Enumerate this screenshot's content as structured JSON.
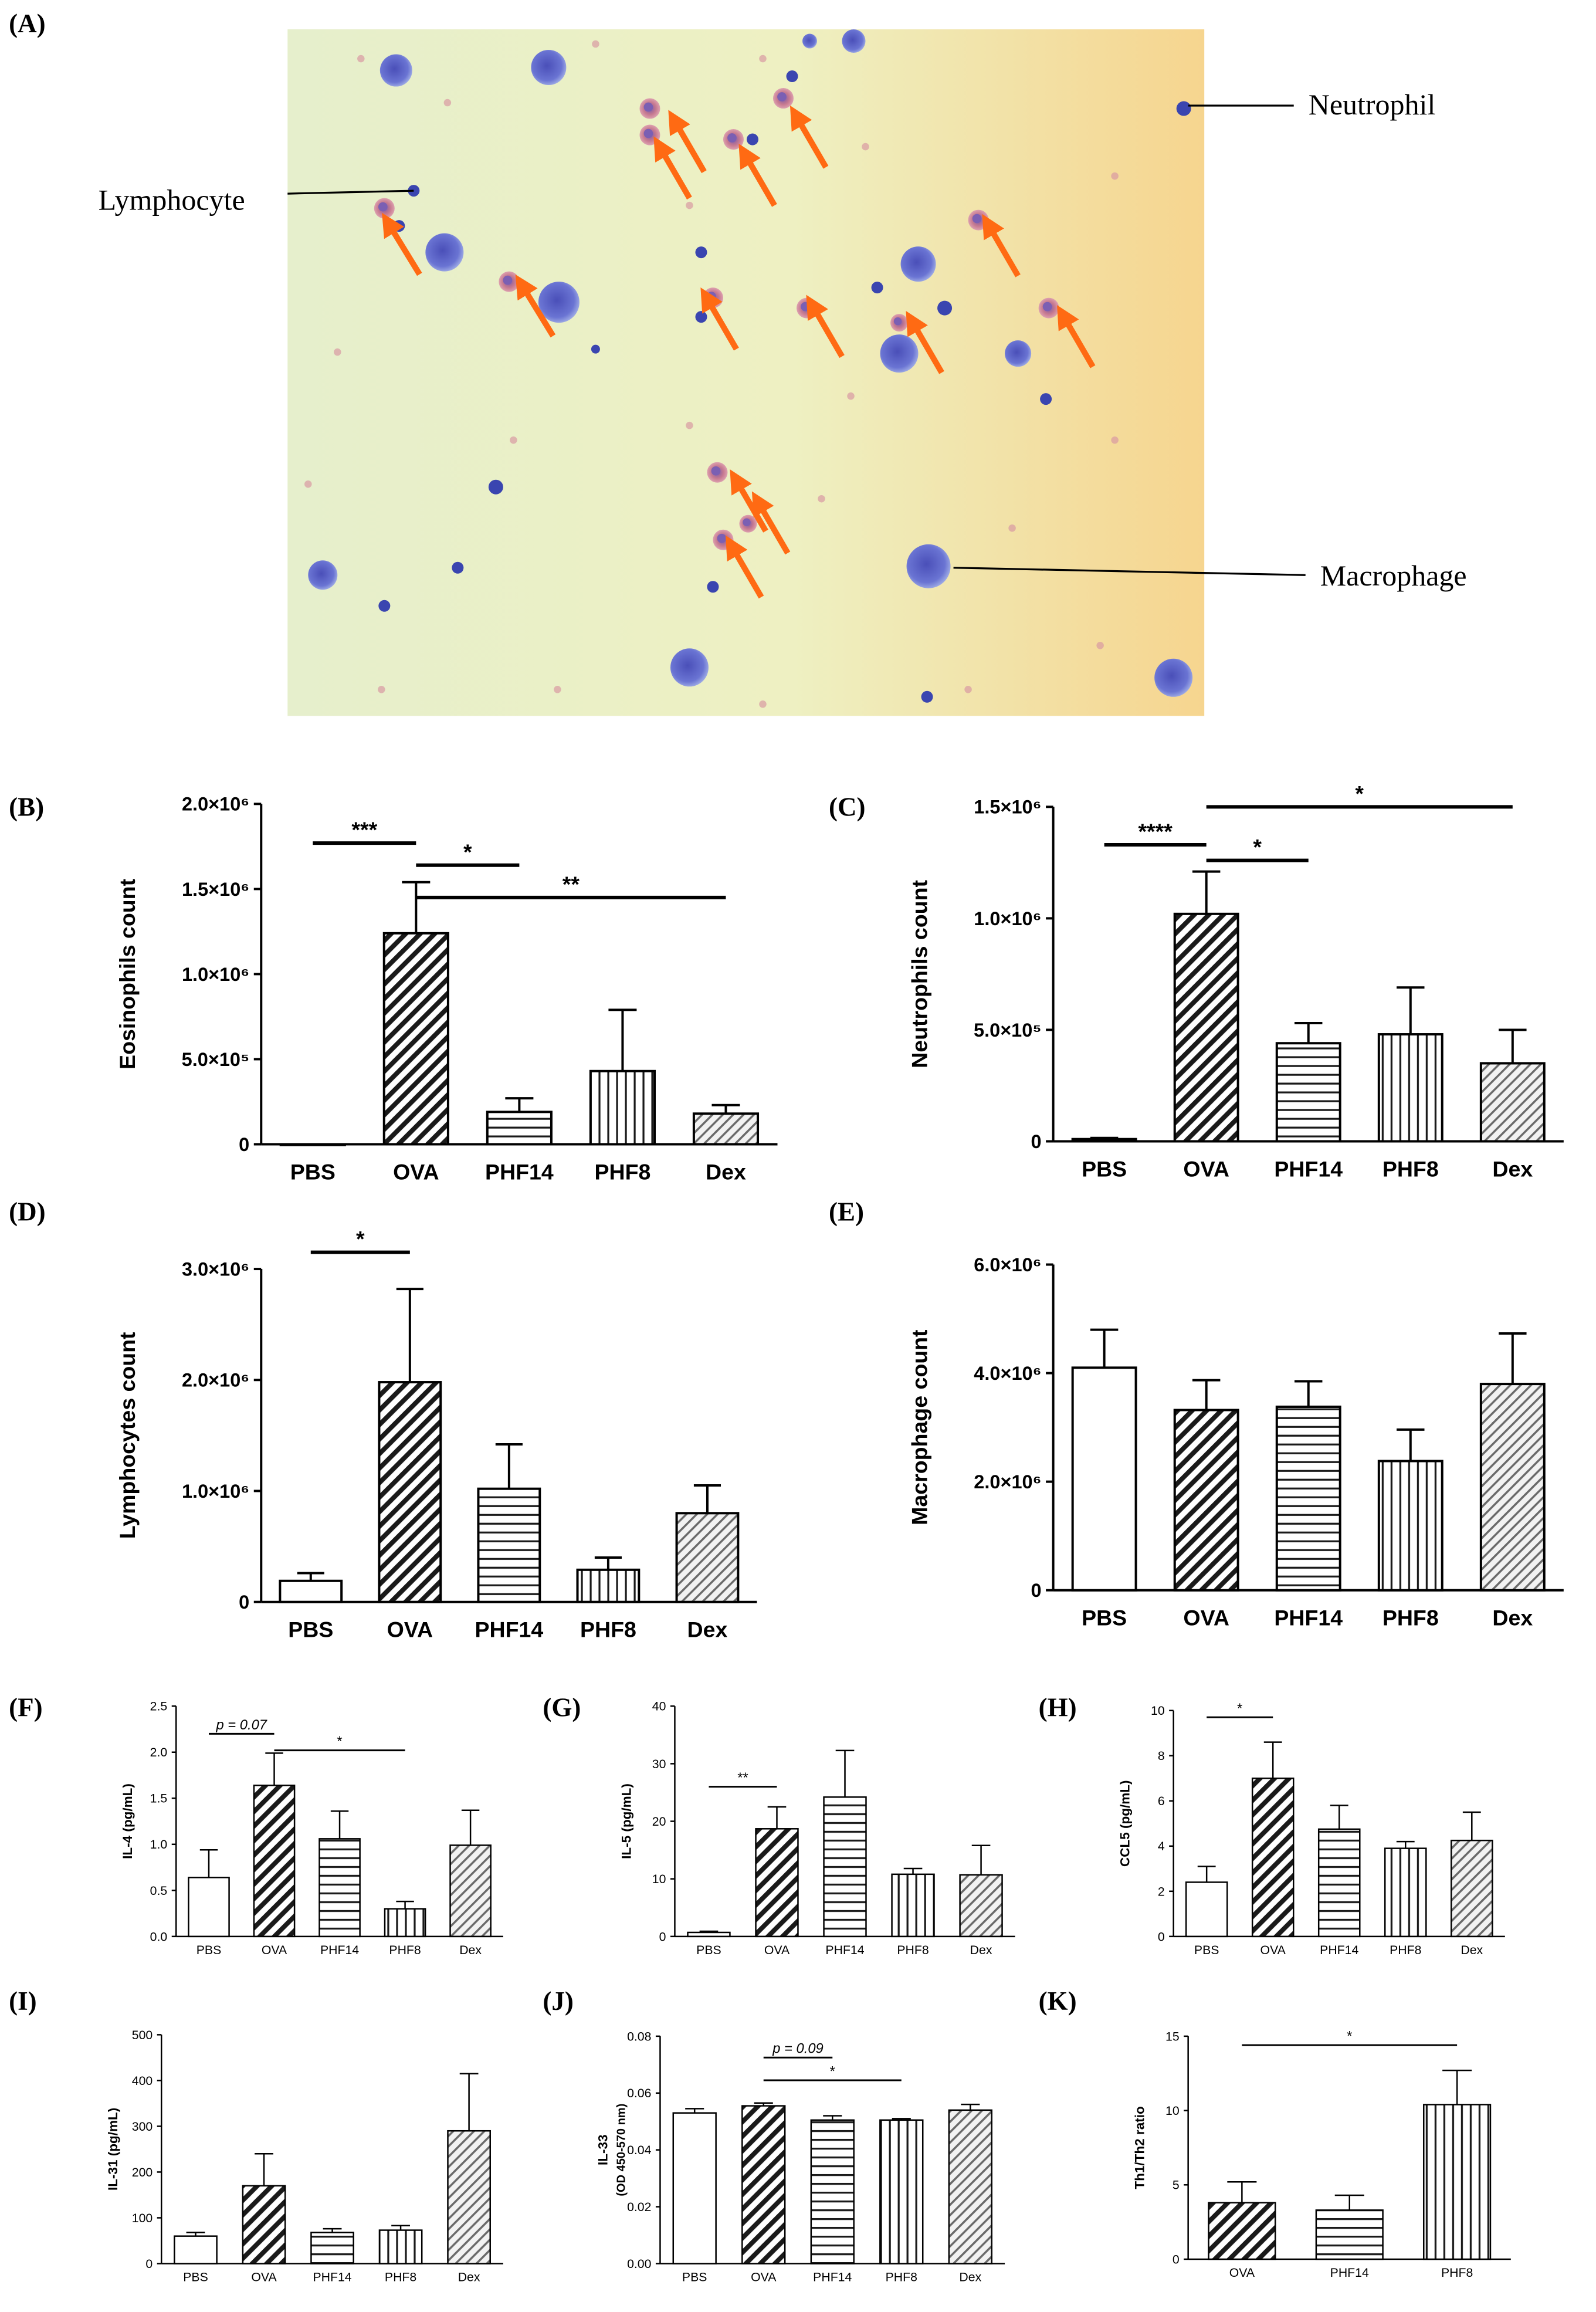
{
  "panel_a": {
    "label": "(A)",
    "annotations": {
      "lymphocyte": "Lymphocyte",
      "neutrophil": "Neutrophil",
      "macrophage": "Macrophage"
    },
    "colors": {
      "background_left": "#e9f0c9",
      "background_right": "#f5d48d",
      "cell": "#5b62c8",
      "eosinophil": "#d47a8e",
      "arrow": "#ff6a13"
    }
  },
  "chart_data": [
    {
      "id": "B",
      "label": "(B)",
      "type": "bar",
      "ylabel": "Eosinophils count",
      "categories": [
        "PBS",
        "OVA",
        "PHF14",
        "PHF8",
        "Dex"
      ],
      "values": [
        0,
        1240000,
        190000,
        430000,
        180000
      ],
      "errors": [
        0,
        300000,
        80000,
        360000,
        50000
      ],
      "ylim": [
        0,
        2000000
      ],
      "yticks": [
        0,
        500000,
        1000000,
        1500000,
        2000000
      ],
      "yticklabels": [
        "0",
        "5.0×10⁵",
        "1.0×10⁶",
        "1.5×10⁶",
        "2.0×10⁶"
      ],
      "significance": [
        {
          "from": 0,
          "to": 1,
          "text": "***",
          "y": 1770000
        },
        {
          "from": 1,
          "to": 2,
          "text": "*",
          "y": 1640000
        },
        {
          "from": 1,
          "to": 4,
          "text": "**",
          "y": 1450000
        }
      ]
    },
    {
      "id": "C",
      "label": "(C)",
      "type": "bar",
      "ylabel": "Neutrophils count",
      "categories": [
        "PBS",
        "OVA",
        "PHF14",
        "PHF8",
        "Dex"
      ],
      "values": [
        10000,
        1020000,
        440000,
        480000,
        350000
      ],
      "errors": [
        5000,
        190000,
        90000,
        210000,
        150000
      ],
      "ylim": [
        0,
        1500000
      ],
      "yticks": [
        0,
        500000,
        1000000,
        1500000
      ],
      "yticklabels": [
        "0",
        "5.0×10⁵",
        "1.0×10⁶",
        "1.5×10⁶"
      ],
      "significance": [
        {
          "from": 0,
          "to": 1,
          "text": "****",
          "y": 1330000
        },
        {
          "from": 1,
          "to": 2,
          "text": "*",
          "y": 1260000
        },
        {
          "from": 1,
          "to": 4,
          "text": "*",
          "y": 1500000
        }
      ]
    },
    {
      "id": "D",
      "label": "(D)",
      "type": "bar",
      "ylabel": "Lymphocytes count",
      "categories": [
        "PBS",
        "OVA",
        "PHF14",
        "PHF8",
        "Dex"
      ],
      "values": [
        190000,
        1980000,
        1020000,
        290000,
        800000
      ],
      "errors": [
        70000,
        840000,
        400000,
        110000,
        250000
      ],
      "ylim": [
        0,
        3000000
      ],
      "yticks": [
        0,
        1000000,
        2000000,
        3000000
      ],
      "yticklabels": [
        "0",
        "1.0×10⁶",
        "2.0×10⁶",
        "3.0×10⁶"
      ],
      "significance": [
        {
          "from": 0,
          "to": 1,
          "text": "*",
          "y": 3150000
        }
      ]
    },
    {
      "id": "E",
      "label": "(E)",
      "type": "bar",
      "ylabel": "Macrophage count",
      "categories": [
        "PBS",
        "OVA",
        "PHF14",
        "PHF8",
        "Dex"
      ],
      "values": [
        4100000,
        3320000,
        3380000,
        2380000,
        3800000
      ],
      "errors": [
        700000,
        550000,
        470000,
        580000,
        930000
      ],
      "ylim": [
        0,
        6000000
      ],
      "yticks": [
        0,
        2000000,
        4000000,
        6000000
      ],
      "yticklabels": [
        "0",
        "2.0×10⁶",
        "4.0×10⁶",
        "6.0×10⁶"
      ],
      "significance": []
    },
    {
      "id": "F",
      "label": "(F)",
      "type": "bar",
      "ylabel": "IL-4 (pg/mL)",
      "categories": [
        "PBS",
        "OVA",
        "PHF14",
        "PHF8",
        "Dex"
      ],
      "values": [
        0.64,
        1.64,
        1.06,
        0.3,
        0.99
      ],
      "errors": [
        0.3,
        0.35,
        0.3,
        0.08,
        0.38
      ],
      "ylim": [
        0,
        2.5
      ],
      "yticks": [
        0,
        0.5,
        1.0,
        1.5,
        2.0,
        2.5
      ],
      "yticklabels": [
        "0.0",
        "0.5",
        "1.0",
        "1.5",
        "2.0",
        "2.5"
      ],
      "significance": [
        {
          "from": 0,
          "to": 1,
          "text": "p = 0.07",
          "italic": true,
          "y": 2.2
        },
        {
          "from": 1,
          "to": 3,
          "text": "*",
          "y": 2.02
        }
      ]
    },
    {
      "id": "G",
      "label": "(G)",
      "type": "bar",
      "ylabel": "IL-5 (pg/mL)",
      "categories": [
        "PBS",
        "OVA",
        "PHF14",
        "PHF8",
        "Dex"
      ],
      "values": [
        0.7,
        18.7,
        24.2,
        10.8,
        10.7
      ],
      "errors": [
        0.2,
        3.8,
        8.1,
        1.0,
        5.1
      ],
      "ylim": [
        0,
        40
      ],
      "yticks": [
        0,
        10,
        20,
        30,
        40
      ],
      "yticklabels": [
        "0",
        "10",
        "20",
        "30",
        "40"
      ],
      "significance": [
        {
          "from": 0,
          "to": 1,
          "text": "**",
          "y": 26
        }
      ]
    },
    {
      "id": "H",
      "label": "(H)",
      "type": "bar",
      "ylabel": "CCL5 (pg/mL)",
      "categories": [
        "PBS",
        "OVA",
        "PHF14",
        "PHF8",
        "Dex"
      ],
      "values": [
        2.4,
        7.0,
        4.75,
        3.9,
        4.25
      ],
      "errors": [
        0.7,
        1.6,
        1.05,
        0.3,
        1.25
      ],
      "ylim": [
        0,
        10
      ],
      "yticks": [
        0,
        2,
        4,
        6,
        8,
        10
      ],
      "yticklabels": [
        "0",
        "2",
        "4",
        "6",
        "8",
        "10"
      ],
      "significance": [
        {
          "from": 0,
          "to": 1,
          "text": "*",
          "y": 9.7
        }
      ]
    },
    {
      "id": "I",
      "label": "(I)",
      "type": "bar",
      "ylabel": "IL-31 (pg/mL)",
      "categories": [
        "PBS",
        "OVA",
        "PHF14",
        "PHF8",
        "Dex"
      ],
      "values": [
        60,
        170,
        68,
        73,
        290
      ],
      "errors": [
        8,
        70,
        8,
        10,
        125
      ],
      "ylim": [
        0,
        500
      ],
      "yticks": [
        0,
        100,
        200,
        300,
        400,
        500
      ],
      "yticklabels": [
        "0",
        "100",
        "200",
        "300",
        "400",
        "500"
      ],
      "significance": []
    },
    {
      "id": "J",
      "label": "(J)",
      "type": "bar",
      "ylabel": "IL-33",
      "ylabel2": "(OD 450-570 nm)",
      "categories": [
        "PBS",
        "OVA",
        "PHF14",
        "PHF8",
        "Dex"
      ],
      "values": [
        0.053,
        0.0555,
        0.0505,
        0.0505,
        0.054
      ],
      "errors": [
        0.0015,
        0.001,
        0.0015,
        0.0005,
        0.002
      ],
      "ylim": [
        0,
        0.08
      ],
      "yticks": [
        0,
        0.02,
        0.04,
        0.06,
        0.08
      ],
      "yticklabels": [
        "0.00",
        "0.02",
        "0.04",
        "0.06",
        "0.08"
      ],
      "significance": [
        {
          "from": 1,
          "to": 2,
          "text": "p = 0.09",
          "italic": true,
          "y": 0.0725
        },
        {
          "from": 1,
          "to": 3,
          "text": "*",
          "y": 0.0645
        }
      ]
    },
    {
      "id": "K",
      "label": "(K)",
      "type": "bar",
      "ylabel": "Th1/Th2 ratio",
      "categories": [
        "OVA",
        "PHF14",
        "PHF8"
      ],
      "values": [
        3.8,
        3.3,
        10.4
      ],
      "errors": [
        1.4,
        1.0,
        2.3
      ],
      "ylim": [
        0,
        15
      ],
      "yticks": [
        0,
        5,
        10,
        15
      ],
      "yticklabels": [
        "0",
        "5",
        "10",
        "15"
      ],
      "significance": [
        {
          "from": 0,
          "to": 2,
          "text": "*",
          "y": 14.4
        }
      ]
    }
  ]
}
